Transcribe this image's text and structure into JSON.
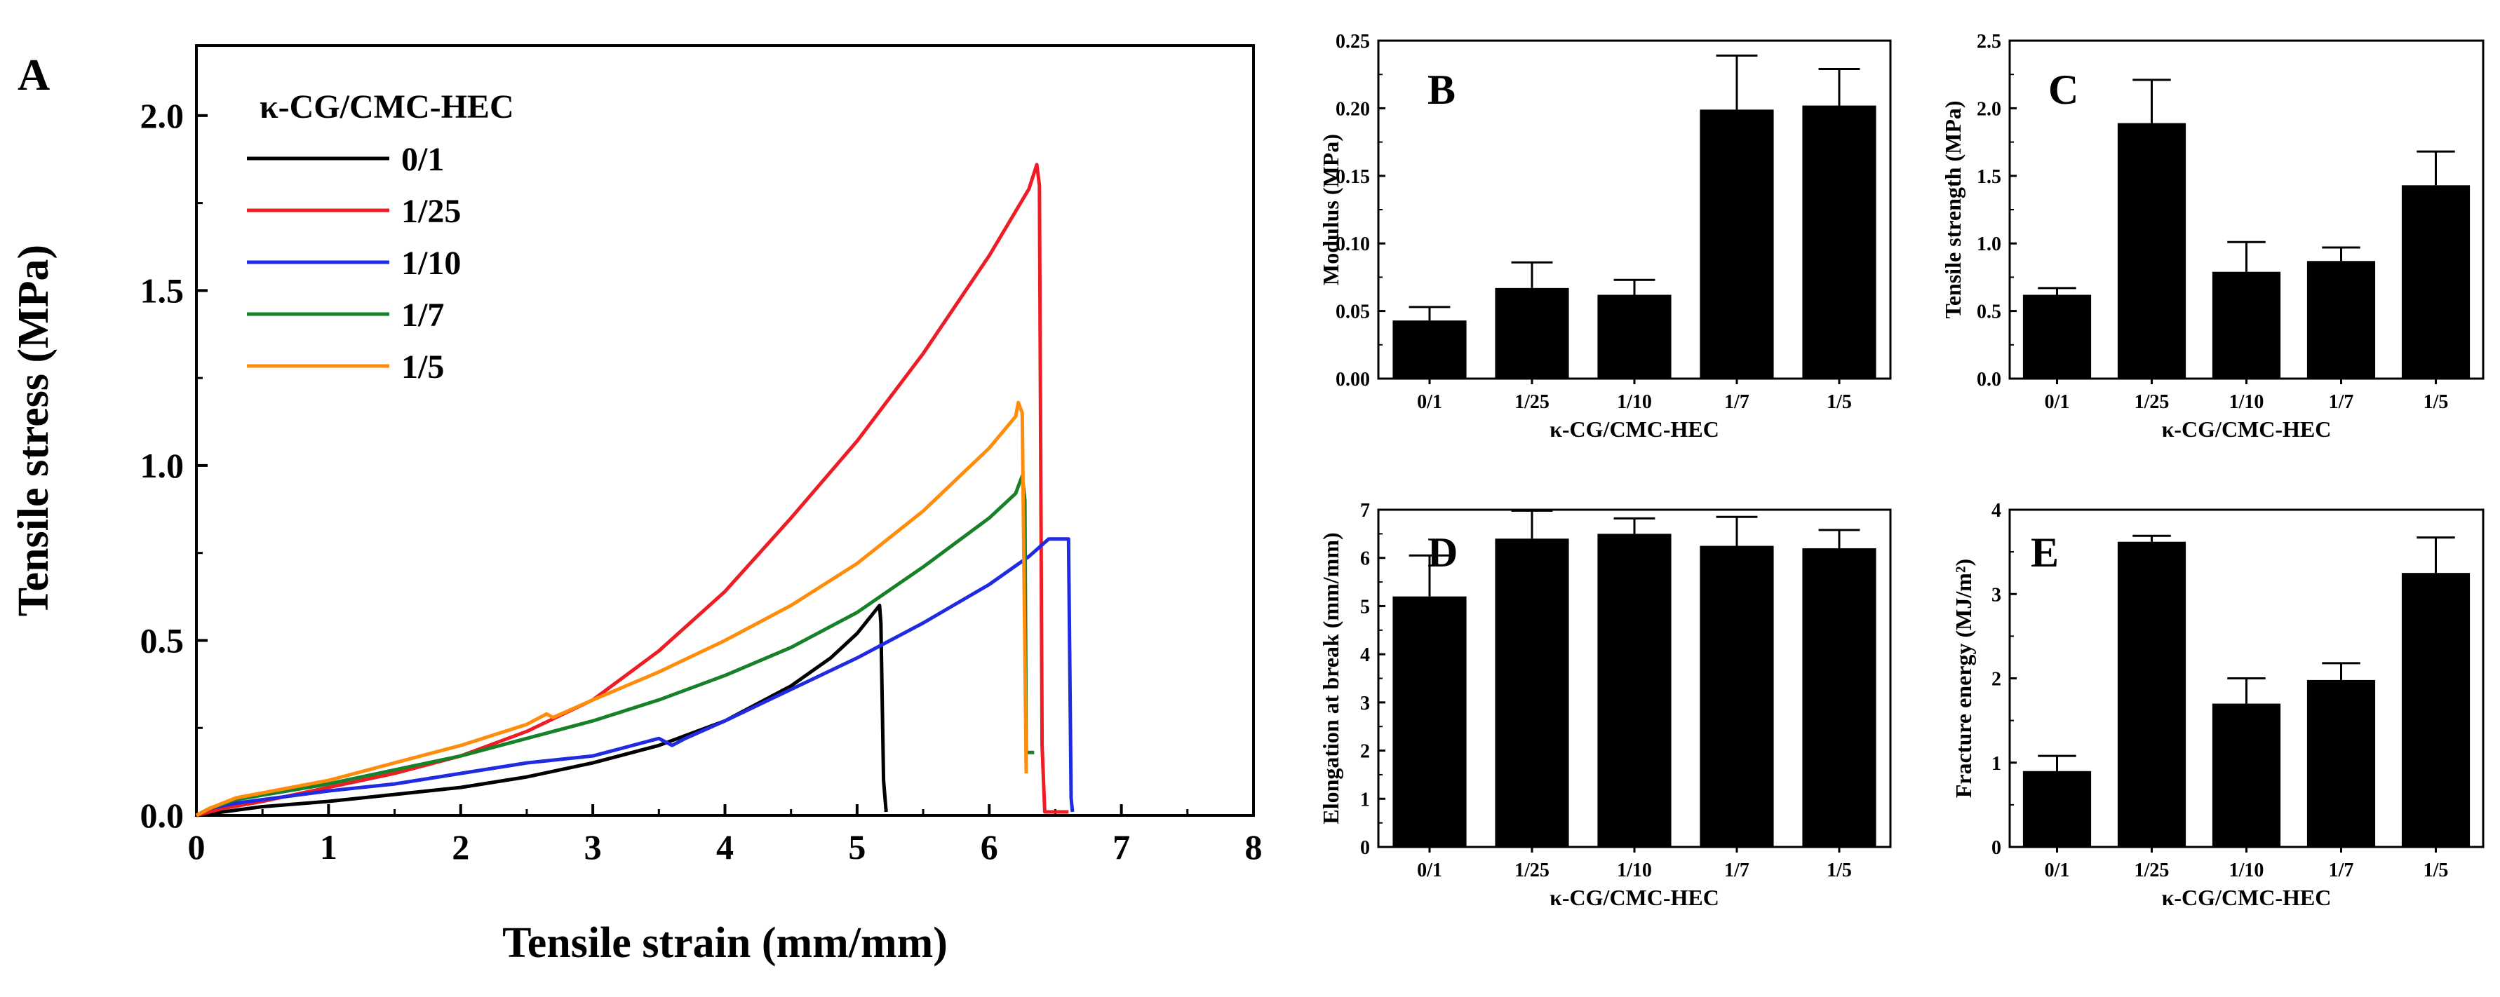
{
  "colors": {
    "axis": "#000000",
    "bar": "#000000",
    "background": "#ffffff"
  },
  "chart_data": [
    {
      "panel": "A",
      "type": "line",
      "xlabel": "Tensile strain (mm/mm)",
      "ylabel": "Tensile stress (MPa)",
      "xlim": [
        0,
        8
      ],
      "ylim": [
        0,
        2.2
      ],
      "x_ticks": [
        0,
        1,
        2,
        3,
        4,
        5,
        6,
        7,
        8
      ],
      "x_tick_labels": [
        "0",
        "1",
        "2",
        "3",
        "4",
        "5",
        "6",
        "7",
        "8"
      ],
      "y_ticks": [
        0,
        0.5,
        1,
        1.5,
        2
      ],
      "y_tick_labels": [
        "0.0",
        "0.5",
        "1.0",
        "1.5",
        "2.0"
      ],
      "legend_title": "κ-CG/CMC-HEC",
      "legend_position": "top-left",
      "series": [
        {
          "name": "0/1",
          "color": "#000000",
          "points": [
            [
              0,
              0
            ],
            [
              0.2,
              0.01
            ],
            [
              0.5,
              0.025
            ],
            [
              1,
              0.04
            ],
            [
              1.5,
              0.06
            ],
            [
              2,
              0.08
            ],
            [
              2.5,
              0.11
            ],
            [
              3,
              0.15
            ],
            [
              3.5,
              0.2
            ],
            [
              4,
              0.27
            ],
            [
              4.5,
              0.37
            ],
            [
              4.8,
              0.45
            ],
            [
              5,
              0.52
            ],
            [
              5.17,
              0.6
            ],
            [
              5.18,
              0.55
            ],
            [
              5.2,
              0.1
            ],
            [
              5.22,
              0.01
            ]
          ]
        },
        {
          "name": "1/25",
          "color": "#ee1c24",
          "points": [
            [
              0,
              0
            ],
            [
              0.2,
              0.02
            ],
            [
              0.5,
              0.04
            ],
            [
              1,
              0.08
            ],
            [
              1.5,
              0.12
            ],
            [
              2,
              0.17
            ],
            [
              2.5,
              0.24
            ],
            [
              3,
              0.33
            ],
            [
              3.5,
              0.47
            ],
            [
              4,
              0.64
            ],
            [
              4.5,
              0.85
            ],
            [
              5,
              1.07
            ],
            [
              5.5,
              1.32
            ],
            [
              6,
              1.6
            ],
            [
              6.3,
              1.79
            ],
            [
              6.36,
              1.86
            ],
            [
              6.38,
              1.8
            ],
            [
              6.4,
              0.2
            ],
            [
              6.42,
              0.01
            ],
            [
              6.6,
              0.01
            ]
          ]
        },
        {
          "name": "1/10",
          "color": "#1f2be0",
          "points": [
            [
              0,
              0
            ],
            [
              0.1,
              0.02
            ],
            [
              0.3,
              0.035
            ],
            [
              1,
              0.07
            ],
            [
              1.5,
              0.09
            ],
            [
              2,
              0.12
            ],
            [
              2.5,
              0.15
            ],
            [
              3,
              0.17
            ],
            [
              3.5,
              0.22
            ],
            [
              3.6,
              0.2
            ],
            [
              3.7,
              0.22
            ],
            [
              4,
              0.27
            ],
            [
              4.5,
              0.36
            ],
            [
              5,
              0.45
            ],
            [
              5.5,
              0.55
            ],
            [
              6,
              0.66
            ],
            [
              6.3,
              0.74
            ],
            [
              6.45,
              0.79
            ],
            [
              6.6,
              0.79
            ],
            [
              6.62,
              0.05
            ],
            [
              6.63,
              0.01
            ]
          ]
        },
        {
          "name": "1/7",
          "color": "#17812a",
          "points": [
            [
              0,
              0
            ],
            [
              0.1,
              0.02
            ],
            [
              0.3,
              0.045
            ],
            [
              1,
              0.09
            ],
            [
              1.5,
              0.13
            ],
            [
              2,
              0.17
            ],
            [
              2.5,
              0.22
            ],
            [
              3,
              0.27
            ],
            [
              3.5,
              0.33
            ],
            [
              4,
              0.4
            ],
            [
              4.5,
              0.48
            ],
            [
              5,
              0.58
            ],
            [
              5.5,
              0.71
            ],
            [
              6,
              0.85
            ],
            [
              6.2,
              0.92
            ],
            [
              6.25,
              0.97
            ],
            [
              6.27,
              0.9
            ],
            [
              6.28,
              0.18
            ],
            [
              6.34,
              0.18
            ]
          ]
        },
        {
          "name": "1/5",
          "color": "#ff8c0a",
          "points": [
            [
              0,
              0
            ],
            [
              0.1,
              0.02
            ],
            [
              0.3,
              0.05
            ],
            [
              1,
              0.1
            ],
            [
              1.5,
              0.15
            ],
            [
              2,
              0.2
            ],
            [
              2.5,
              0.26
            ],
            [
              2.65,
              0.29
            ],
            [
              2.7,
              0.28
            ],
            [
              3,
              0.33
            ],
            [
              3.5,
              0.41
            ],
            [
              4,
              0.5
            ],
            [
              4.5,
              0.6
            ],
            [
              5,
              0.72
            ],
            [
              5.5,
              0.87
            ],
            [
              6,
              1.05
            ],
            [
              6.2,
              1.14
            ],
            [
              6.22,
              1.18
            ],
            [
              6.25,
              1.15
            ],
            [
              6.28,
              0.12
            ]
          ]
        }
      ]
    },
    {
      "panel": "B",
      "type": "bar",
      "categories": [
        "0/1",
        "1/25",
        "1/10",
        "1/7",
        "1/5"
      ],
      "values": [
        0.043,
        0.067,
        0.062,
        0.199,
        0.202
      ],
      "errors": [
        0.01,
        0.019,
        0.011,
        0.04,
        0.027
      ],
      "ylim": [
        0,
        0.25
      ],
      "y_ticks": [
        0,
        0.05,
        0.1,
        0.15,
        0.2,
        0.25
      ],
      "y_tick_labels": [
        "0.00",
        "0.05",
        "0.10",
        "0.15",
        "0.20",
        "0.25"
      ],
      "xlabel": "κ-CG/CMC-HEC",
      "ylabel": "Modulus (MPa)"
    },
    {
      "panel": "C",
      "type": "bar",
      "categories": [
        "0/1",
        "1/25",
        "1/10",
        "1/7",
        "1/5"
      ],
      "values": [
        0.62,
        1.89,
        0.79,
        0.87,
        1.43
      ],
      "errors": [
        0.05,
        0.32,
        0.22,
        0.1,
        0.25
      ],
      "ylim": [
        0,
        2.5
      ],
      "y_ticks": [
        0,
        0.5,
        1,
        1.5,
        2,
        2.5
      ],
      "y_tick_labels": [
        "0.0",
        "0.5",
        "1.0",
        "1.5",
        "2.0",
        "2.5"
      ],
      "xlabel": "κ-CG/CMC-HEC",
      "ylabel": "Tensile strength (MPa)"
    },
    {
      "panel": "D",
      "type": "bar",
      "categories": [
        "0/1",
        "1/25",
        "1/10",
        "1/7",
        "1/5"
      ],
      "values": [
        5.2,
        6.4,
        6.5,
        6.25,
        6.2
      ],
      "errors": [
        0.85,
        0.58,
        0.32,
        0.6,
        0.38
      ],
      "ylim": [
        0,
        7
      ],
      "y_ticks": [
        0,
        1,
        2,
        3,
        4,
        5,
        6,
        7
      ],
      "y_tick_labels": [
        "0",
        "1",
        "2",
        "3",
        "4",
        "5",
        "6",
        "7"
      ],
      "xlabel": "κ-CG/CMC-HEC",
      "ylabel": "Elongation at break (mm/mm)"
    },
    {
      "panel": "E",
      "type": "bar",
      "categories": [
        "0/1",
        "1/25",
        "1/10",
        "1/7",
        "1/5"
      ],
      "values": [
        0.9,
        3.62,
        1.7,
        1.98,
        3.25
      ],
      "errors": [
        0.18,
        0.07,
        0.3,
        0.2,
        0.42
      ],
      "ylim": [
        0,
        4
      ],
      "y_ticks": [
        0,
        1,
        2,
        3,
        4
      ],
      "y_tick_labels": [
        "0",
        "1",
        "2",
        "3",
        "4"
      ],
      "xlabel": "κ-CG/CMC-HEC",
      "ylabel": "Fracture energy (MJ/m²)"
    }
  ]
}
